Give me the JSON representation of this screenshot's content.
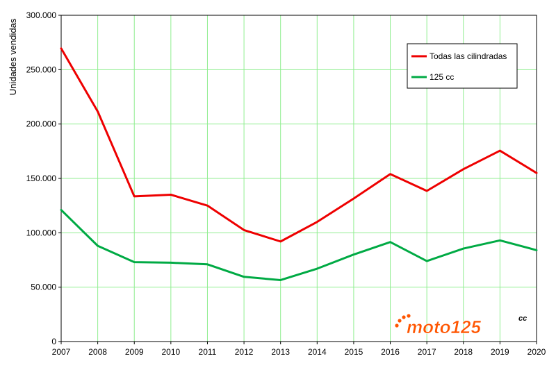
{
  "chart_data": {
    "type": "line",
    "ylabel": "Unidades vendidas",
    "ylim": [
      0,
      300000
    ],
    "yticks": [
      0,
      50000,
      100000,
      150000,
      200000,
      250000,
      300000
    ],
    "ytick_labels": [
      "0",
      "50.000",
      "100.000",
      "150.000",
      "200.000",
      "250.000",
      "300.000"
    ],
    "x": [
      "2007",
      "2008",
      "2009",
      "2010",
      "2011",
      "2012",
      "2013",
      "2014",
      "2015",
      "2016",
      "2017",
      "2018",
      "2019",
      "2020"
    ],
    "grid": true,
    "legend_position": "top-right",
    "series": [
      {
        "name": "Todas las cilindradas",
        "color": "#ee0000",
        "values": [
          269500,
          211500,
          133500,
          135000,
          125000,
          102500,
          92000,
          110000,
          131500,
          154000,
          138500,
          158500,
          175500,
          155000
        ]
      },
      {
        "name": "125 cc",
        "color": "#00aa44",
        "values": [
          121000,
          88000,
          73000,
          72500,
          71000,
          59500,
          56500,
          67000,
          80000,
          91500,
          74000,
          85500,
          93000,
          84000
        ]
      }
    ]
  },
  "logo": {
    "brand": "moto125",
    "suffix": "cc",
    "primary_color": "#ff5500",
    "secondary_color": "#111111"
  }
}
